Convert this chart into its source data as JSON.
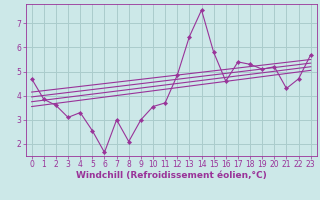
{
  "title": "",
  "xlabel": "Windchill (Refroidissement éolien,°C)",
  "x_ticks": [
    0,
    1,
    2,
    3,
    4,
    5,
    6,
    7,
    8,
    9,
    10,
    11,
    12,
    13,
    14,
    15,
    16,
    17,
    18,
    19,
    20,
    21,
    22,
    23
  ],
  "ylim": [
    1.5,
    7.8
  ],
  "xlim": [
    -0.5,
    23.5
  ],
  "yticks": [
    2,
    3,
    4,
    5,
    6,
    7
  ],
  "bg_color": "#cce8e8",
  "line_color": "#993399",
  "marker": "D",
  "scatter_x": [
    0,
    1,
    2,
    3,
    4,
    5,
    6,
    7,
    8,
    9,
    10,
    11,
    12,
    13,
    14,
    15,
    16,
    17,
    18,
    19,
    20,
    21,
    22,
    23
  ],
  "scatter_y": [
    4.7,
    3.85,
    3.6,
    3.1,
    3.3,
    2.55,
    1.65,
    3.0,
    2.1,
    3.0,
    3.55,
    3.7,
    4.85,
    6.45,
    7.55,
    5.8,
    4.6,
    5.4,
    5.3,
    5.1,
    5.2,
    4.3,
    4.7,
    5.7
  ],
  "reg_lines": [
    {
      "x": [
        0,
        23
      ],
      "y": [
        3.55,
        5.05
      ]
    },
    {
      "x": [
        0,
        23
      ],
      "y": [
        3.75,
        5.2
      ]
    },
    {
      "x": [
        0,
        23
      ],
      "y": [
        3.95,
        5.35
      ]
    },
    {
      "x": [
        0,
        23
      ],
      "y": [
        4.15,
        5.5
      ]
    }
  ],
  "grid_color": "#aacccc",
  "tick_fontsize": 5.5,
  "label_fontsize": 6.5
}
